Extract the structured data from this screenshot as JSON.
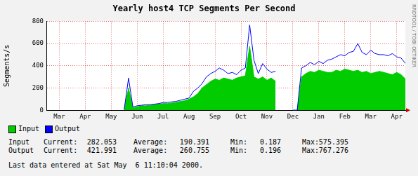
{
  "chart_data": {
    "type": "line",
    "title": "Yearly host4 TCP Segments Per Second",
    "y_label": "Segments/s",
    "annotation": "RRDTOOL / TOBI OETIKER",
    "categories": [
      null,
      null,
      null,
      "Mar",
      null,
      null,
      null,
      null,
      null,
      "Apr",
      null,
      null,
      null,
      null,
      null,
      "May",
      null,
      null,
      null,
      null,
      null,
      "Jun",
      null,
      null,
      null,
      null,
      null,
      "Jul",
      null,
      null,
      null,
      null,
      null,
      "Aug",
      null,
      null,
      null,
      null,
      null,
      "Sep",
      null,
      null,
      null,
      null,
      null,
      "Oct",
      null,
      null,
      null,
      null,
      null,
      "Nov",
      null,
      null,
      null,
      null,
      null,
      "Dec",
      null,
      null,
      null,
      null,
      null,
      "Jan",
      null,
      null,
      null,
      null,
      null,
      "Feb",
      null,
      null,
      null,
      null,
      null,
      "Mar",
      null,
      null,
      null,
      null,
      null,
      "Apr",
      null,
      null
    ],
    "series": [
      {
        "name": "Input",
        "color": "#00cc00",
        "type": "area",
        "values": [
          null,
          null,
          null,
          null,
          null,
          null,
          null,
          null,
          null,
          null,
          null,
          null,
          null,
          null,
          null,
          null,
          null,
          null,
          5,
          200,
          20,
          30,
          40,
          40,
          45,
          50,
          55,
          60,
          60,
          65,
          70,
          80,
          85,
          100,
          120,
          150,
          200,
          230,
          260,
          280,
          270,
          290,
          280,
          270,
          290,
          300,
          310,
          575,
          300,
          280,
          300,
          270,
          290,
          260,
          null,
          null,
          null,
          0,
          0,
          300,
          330,
          350,
          340,
          360,
          350,
          340,
          340,
          360,
          350,
          370,
          360,
          350,
          360,
          340,
          350,
          330,
          340,
          350,
          340,
          330,
          320,
          340,
          320,
          282
        ]
      },
      {
        "name": "Output",
        "color": "#0000ff",
        "type": "line",
        "values": [
          null,
          null,
          null,
          null,
          null,
          null,
          null,
          null,
          null,
          null,
          null,
          null,
          null,
          null,
          null,
          null,
          null,
          null,
          8,
          290,
          30,
          40,
          45,
          50,
          50,
          55,
          60,
          70,
          70,
          75,
          80,
          90,
          100,
          110,
          170,
          200,
          240,
          300,
          330,
          350,
          380,
          360,
          330,
          340,
          320,
          360,
          380,
          767,
          450,
          330,
          420,
          370,
          340,
          350,
          null,
          null,
          null,
          0,
          0,
          380,
          400,
          430,
          410,
          440,
          420,
          450,
          460,
          480,
          500,
          490,
          520,
          530,
          600,
          520,
          500,
          540,
          510,
          500,
          500,
          490,
          510,
          480,
          470,
          422
        ]
      }
    ],
    "ylim": [
      0,
      800
    ],
    "yticks": [
      0,
      200,
      400,
      600,
      800
    ],
    "grid": true,
    "legend": "bottom",
    "stats": {
      "labels": [
        "Current:",
        "Average:",
        "Min:",
        "Max:"
      ],
      "rows": [
        {
          "name": "Input",
          "values": [
            282.053,
            190.391,
            0.187,
            575.395
          ]
        },
        {
          "name": "Output",
          "values": [
            421.991,
            260.755,
            0.196,
            767.276
          ]
        }
      ]
    },
    "footer": "Last data entered at Sat May  6 11:10:04 2000."
  }
}
